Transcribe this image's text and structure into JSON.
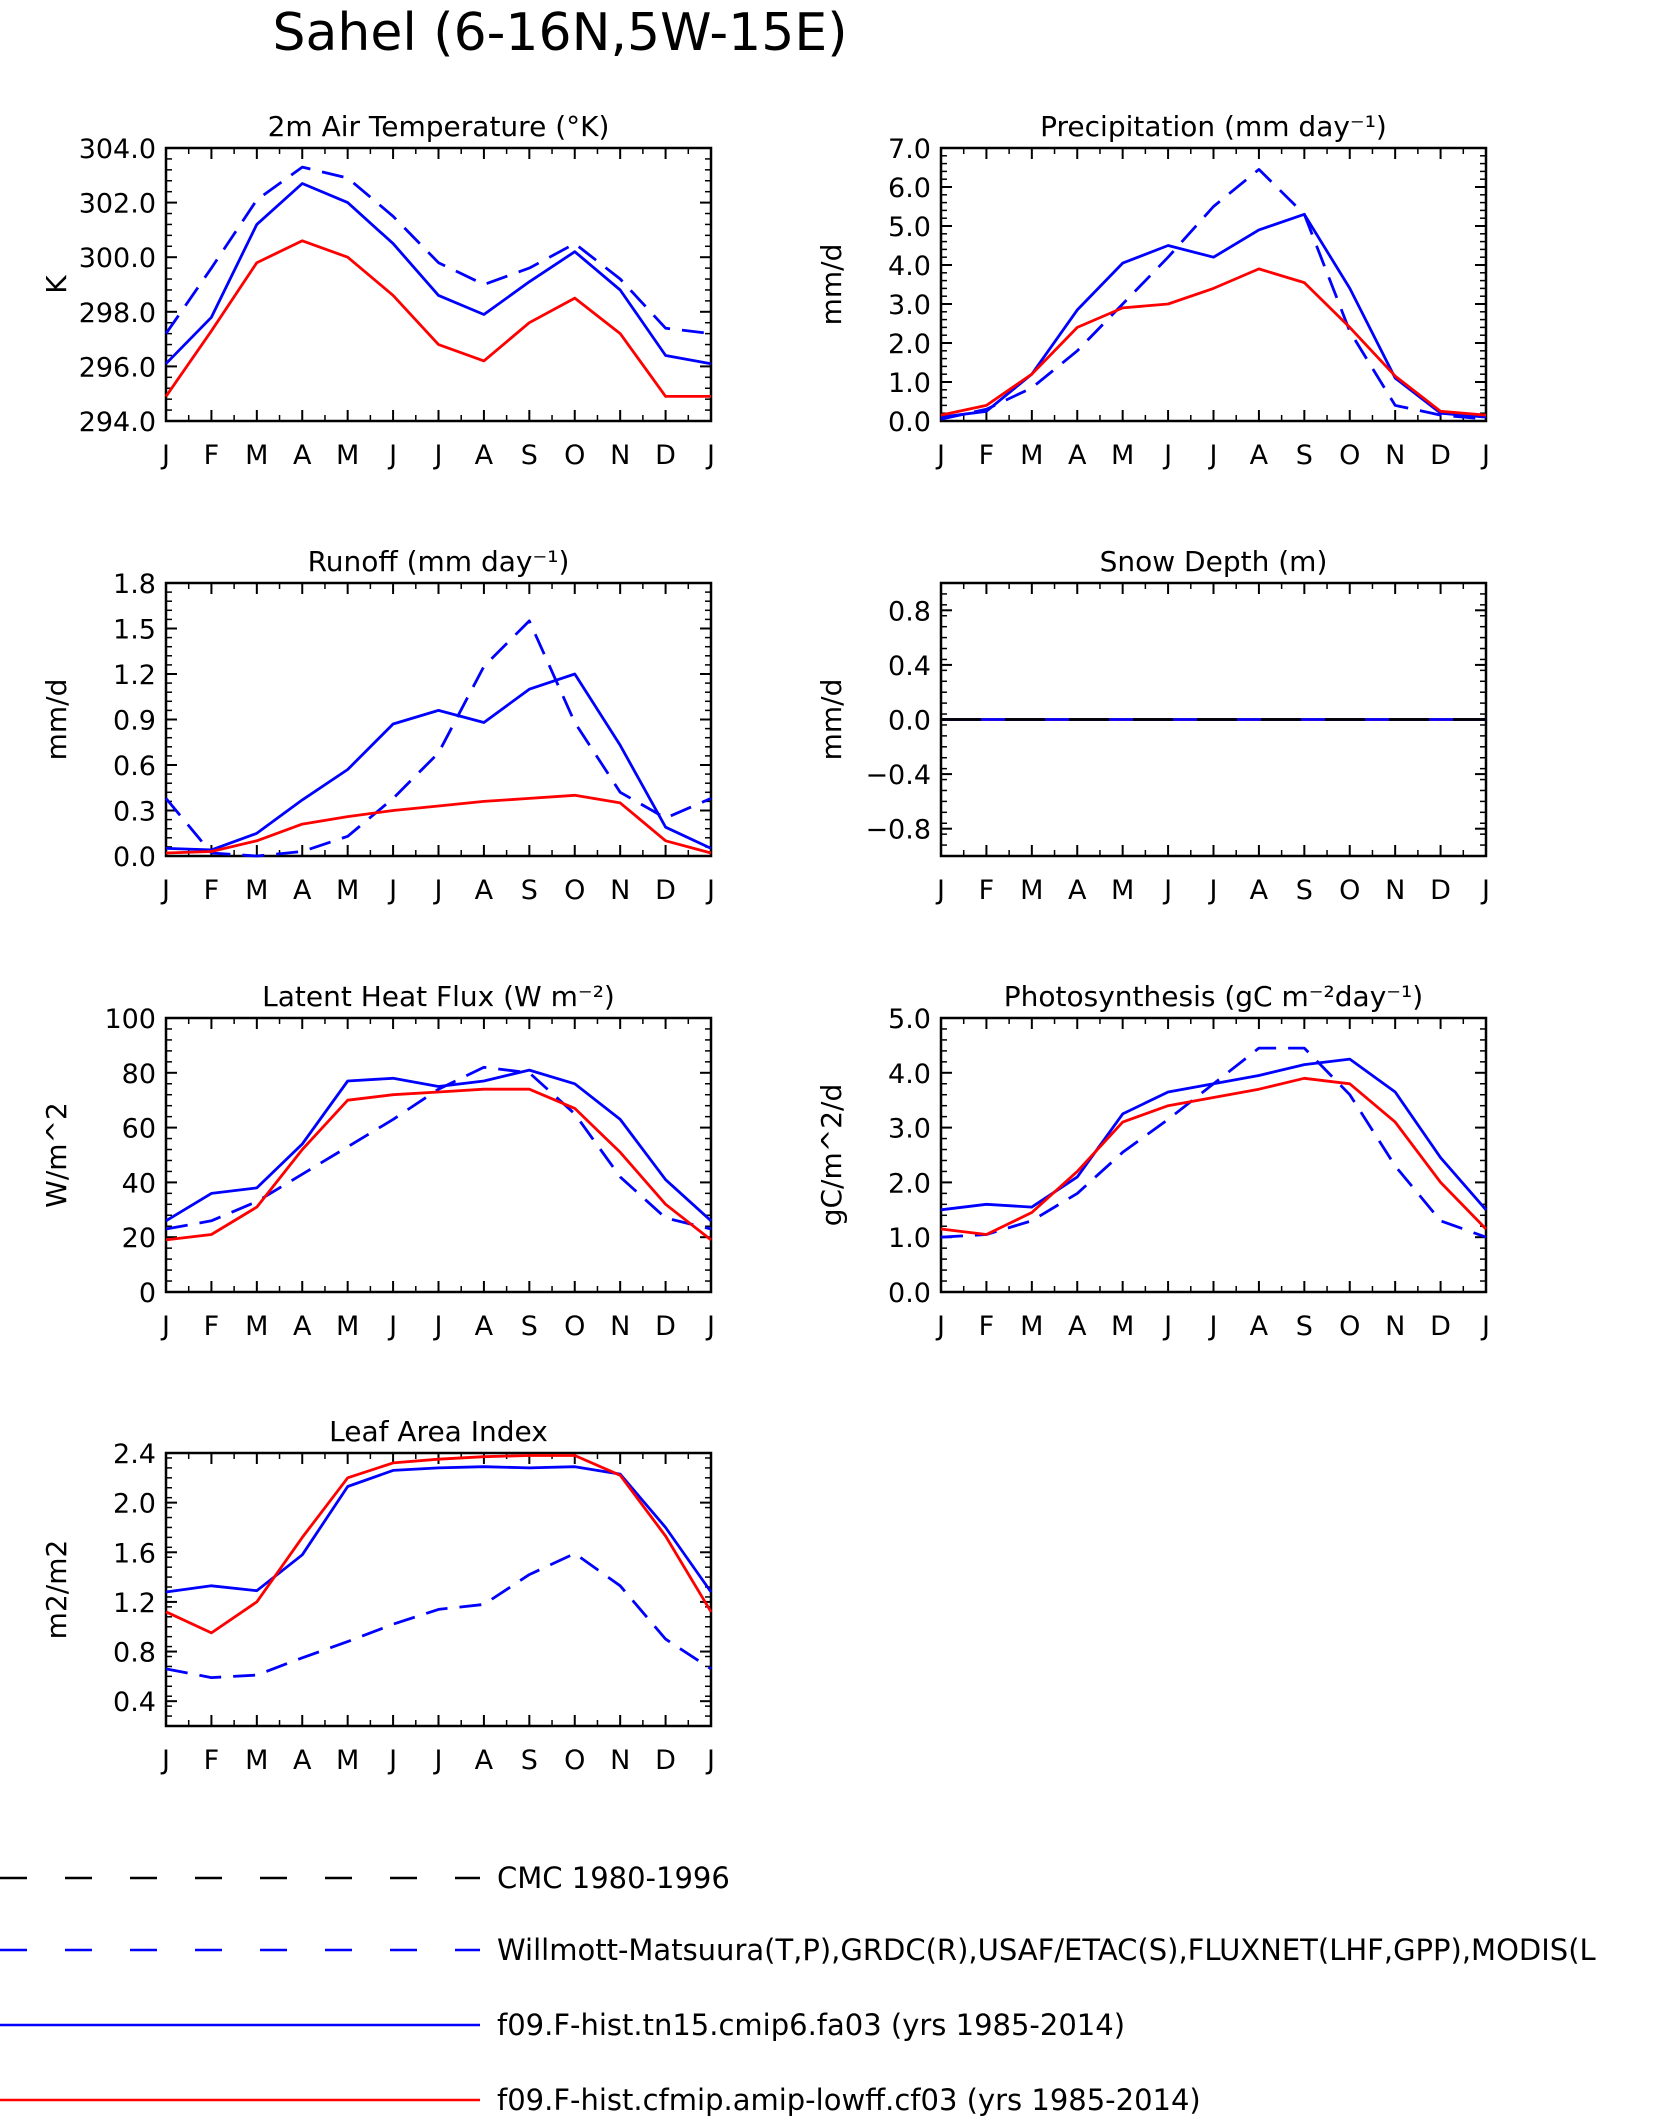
{
  "page_title": "Sahel (6-16N,5W-15E)",
  "month_labels": [
    "J",
    "F",
    "M",
    "A",
    "M",
    "J",
    "J",
    "A",
    "S",
    "O",
    "N",
    "D",
    "J"
  ],
  "legend": [
    {
      "label": "CMC 1980-1996",
      "color": "#000000",
      "dashed": true
    },
    {
      "label": "Willmott-Matsuura(T,P),GRDC(R),USAF/ETAC(S),FLUXNET(LHF,GPP),MODIS(L",
      "color": "#0000ff",
      "dashed": true
    },
    {
      "label": "f09.F-hist.tn15.cmip6.fa03 (yrs 1985-2014)",
      "color": "#0000ff",
      "dashed": false
    },
    {
      "label": "f09.F-hist.cfmip.amip-lowff.cf03 (yrs 1985-2014)",
      "color": "#ff0000",
      "dashed": false
    }
  ],
  "chart_data": [
    {
      "type": "line",
      "title": "2m Air Temperature (°K)",
      "ylabel": "K",
      "ylim": [
        294.0,
        304.0
      ],
      "yticks": [
        294.0,
        296.0,
        298.0,
        300.0,
        302.0,
        304.0
      ],
      "ytick_labels": [
        "294.0",
        "296.0",
        "298.0",
        "300.0",
        "302.0",
        "304.0"
      ],
      "series": [
        {
          "style": "obs-dashed",
          "color": "#0000ff",
          "values": [
            297.2,
            299.6,
            302.1,
            303.3,
            302.9,
            301.5,
            299.8,
            299.0,
            299.6,
            300.5,
            299.2,
            297.4,
            297.2
          ]
        },
        {
          "style": "solid",
          "color": "#0000ff",
          "values": [
            296.1,
            297.8,
            301.2,
            302.7,
            302.0,
            300.5,
            298.6,
            297.9,
            299.1,
            300.2,
            298.8,
            296.4,
            296.1
          ]
        },
        {
          "style": "solid",
          "color": "#ff0000",
          "values": [
            294.9,
            297.3,
            299.8,
            300.6,
            300.0,
            298.6,
            296.8,
            296.2,
            297.6,
            298.5,
            297.2,
            294.9,
            294.9
          ]
        }
      ]
    },
    {
      "type": "line",
      "title": "Precipitation (mm day⁻¹)",
      "ylabel": "mm/d",
      "ylim": [
        0.0,
        7.0
      ],
      "yticks": [
        0,
        1,
        2,
        3,
        4,
        5,
        6,
        7
      ],
      "ytick_labels": [
        "0.0",
        "1.0",
        "2.0",
        "3.0",
        "4.0",
        "5.0",
        "6.0",
        "7.0"
      ],
      "series": [
        {
          "style": "obs-dashed",
          "color": "#0000ff",
          "values": [
            0.05,
            0.3,
            0.85,
            1.8,
            3.0,
            4.2,
            5.5,
            6.45,
            5.3,
            2.3,
            0.4,
            0.15,
            0.05
          ]
        },
        {
          "style": "solid",
          "color": "#0000ff",
          "values": [
            0.1,
            0.25,
            1.2,
            2.85,
            4.05,
            4.5,
            4.2,
            4.9,
            5.3,
            3.4,
            1.1,
            0.2,
            0.1
          ]
        },
        {
          "style": "solid",
          "color": "#ff0000",
          "values": [
            0.15,
            0.4,
            1.2,
            2.4,
            2.9,
            3.0,
            3.4,
            3.9,
            3.55,
            2.4,
            1.15,
            0.25,
            0.15
          ]
        }
      ]
    },
    {
      "type": "line",
      "title": "Runoff (mm day⁻¹)",
      "ylabel": "mm/d",
      "ylim": [
        0.0,
        1.8
      ],
      "yticks": [
        0.0,
        0.3,
        0.6,
        0.9,
        1.2,
        1.5,
        1.8
      ],
      "ytick_labels": [
        "0.0",
        "0.3",
        "0.6",
        "0.9",
        "1.2",
        "1.5",
        "1.8"
      ],
      "series": [
        {
          "style": "obs-dashed",
          "color": "#0000ff",
          "values": [
            0.38,
            0.02,
            0.0,
            0.03,
            0.13,
            0.38,
            0.68,
            1.25,
            1.55,
            0.88,
            0.42,
            0.25,
            0.38
          ]
        },
        {
          "style": "solid",
          "color": "#0000ff",
          "values": [
            0.05,
            0.04,
            0.15,
            0.37,
            0.57,
            0.87,
            0.96,
            0.88,
            1.1,
            1.2,
            0.73,
            0.19,
            0.05
          ]
        },
        {
          "style": "solid",
          "color": "#ff0000",
          "values": [
            0.02,
            0.03,
            0.1,
            0.21,
            0.26,
            0.3,
            0.33,
            0.36,
            0.38,
            0.4,
            0.35,
            0.1,
            0.02
          ]
        }
      ]
    },
    {
      "type": "line",
      "title": "Snow Depth (m)",
      "ylabel": "mm/d",
      "ylim": [
        -1.0,
        1.0
      ],
      "yticks": [
        -0.8,
        -0.4,
        0.0,
        0.4,
        0.8
      ],
      "ytick_labels": [
        "−0.8",
        "−0.4",
        "0.0",
        "0.4",
        "0.8"
      ],
      "series": [
        {
          "style": "solid",
          "color": "#ff0000",
          "values": [
            0,
            0,
            0,
            0,
            0,
            0,
            0,
            0,
            0,
            0,
            0,
            0,
            0
          ]
        },
        {
          "style": "solid",
          "color": "#0000ff",
          "values": [
            0,
            0,
            0,
            0,
            0,
            0,
            0,
            0,
            0,
            0,
            0,
            0,
            0
          ]
        },
        {
          "style": "cmc-dashed",
          "color": "#000000",
          "values": [
            0,
            0,
            0,
            0,
            0,
            0,
            0,
            0,
            0,
            0,
            0,
            0,
            0
          ]
        }
      ]
    },
    {
      "type": "line",
      "title": "Latent Heat Flux (W m⁻²)",
      "ylabel": "W/m^2",
      "ylim": [
        0,
        100
      ],
      "yticks": [
        0,
        20,
        40,
        60,
        80,
        100
      ],
      "ytick_labels": [
        "0",
        "20",
        "40",
        "60",
        "80",
        "100"
      ],
      "series": [
        {
          "style": "obs-dashed",
          "color": "#0000ff",
          "values": [
            23,
            26,
            33,
            43,
            53,
            63,
            74,
            82,
            80,
            65,
            42,
            27,
            23
          ]
        },
        {
          "style": "solid",
          "color": "#0000ff",
          "values": [
            26,
            36,
            38,
            54,
            77,
            78,
            75,
            77,
            81,
            76,
            63,
            41,
            26
          ]
        },
        {
          "style": "solid",
          "color": "#ff0000",
          "values": [
            19,
            21,
            31,
            52,
            70,
            72,
            73,
            74,
            74,
            67,
            51,
            32,
            19
          ]
        }
      ]
    },
    {
      "type": "line",
      "title": "Photosynthesis (gC m⁻²day⁻¹)",
      "ylabel": "gC/m^2/d",
      "ylim": [
        0.0,
        5.0
      ],
      "yticks": [
        0,
        1,
        2,
        3,
        4,
        5
      ],
      "ytick_labels": [
        "0.0",
        "1.0",
        "2.0",
        "3.0",
        "4.0",
        "5.0"
      ],
      "series": [
        {
          "style": "obs-dashed",
          "color": "#0000ff",
          "values": [
            1.0,
            1.05,
            1.3,
            1.8,
            2.55,
            3.15,
            3.8,
            4.45,
            4.45,
            3.6,
            2.3,
            1.3,
            1.0
          ]
        },
        {
          "style": "solid",
          "color": "#0000ff",
          "values": [
            1.5,
            1.6,
            1.55,
            2.1,
            3.25,
            3.65,
            3.8,
            3.95,
            4.15,
            4.25,
            3.65,
            2.45,
            1.5
          ]
        },
        {
          "style": "solid",
          "color": "#ff0000",
          "values": [
            1.15,
            1.05,
            1.45,
            2.2,
            3.1,
            3.4,
            3.55,
            3.7,
            3.9,
            3.8,
            3.1,
            2.0,
            1.15
          ]
        }
      ]
    },
    {
      "type": "line",
      "title": "Leaf Area Index",
      "ylabel": "m2/m2",
      "ylim": [
        0.2,
        2.4
      ],
      "yticks": [
        0.4,
        0.8,
        1.2,
        1.6,
        2.0,
        2.4
      ],
      "ytick_labels": [
        "0.4",
        "0.8",
        "1.2",
        "1.6",
        "2.0",
        "2.4"
      ],
      "series": [
        {
          "style": "obs-dashed",
          "color": "#0000ff",
          "values": [
            0.66,
            0.59,
            0.61,
            0.75,
            0.88,
            1.02,
            1.14,
            1.18,
            1.42,
            1.59,
            1.33,
            0.9,
            0.66
          ]
        },
        {
          "style": "solid",
          "color": "#0000ff",
          "values": [
            1.28,
            1.33,
            1.29,
            1.58,
            2.13,
            2.26,
            2.28,
            2.29,
            2.28,
            2.29,
            2.23,
            1.8,
            1.28
          ]
        },
        {
          "style": "solid",
          "color": "#ff0000",
          "values": [
            1.12,
            0.95,
            1.2,
            1.72,
            2.2,
            2.32,
            2.35,
            2.37,
            2.38,
            2.38,
            2.22,
            1.73,
            1.12
          ]
        }
      ]
    }
  ]
}
